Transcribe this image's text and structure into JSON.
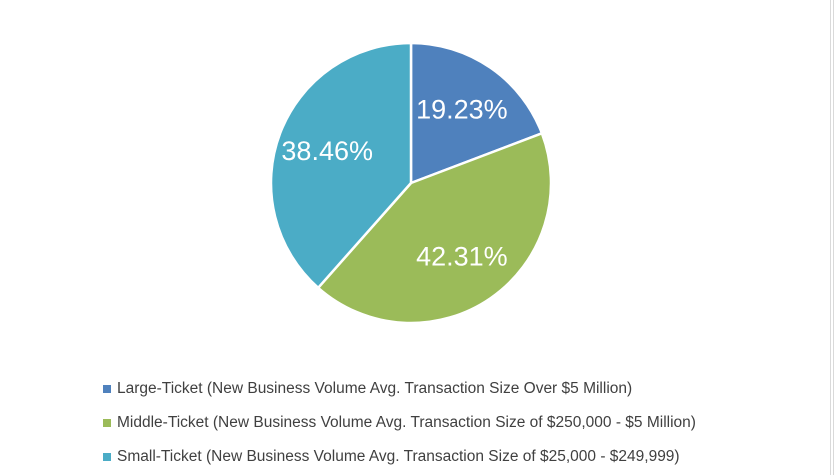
{
  "chart_data": {
    "type": "pie",
    "title": "",
    "slices": [
      {
        "name": "Large-Ticket (New Business Volume Avg. Transaction Size Over $5 Million)",
        "value": 19.23,
        "label": "19.23%",
        "color": "#4f81bd"
      },
      {
        "name": "Middle-Ticket (New Business Volume Avg. Transaction Size of $250,000 - $5 Million)",
        "value": 42.31,
        "label": "42.31%",
        "color": "#9bbb59"
      },
      {
        "name": "Small-Ticket (New Business Volume Avg. Transaction Size of $25,000 - $249,999)",
        "value": 38.46,
        "label": "38.46%",
        "color": "#4bacc6"
      }
    ],
    "start_angle": "12 o'clock",
    "direction": "clockwise",
    "legend_position": "bottom",
    "slice_border_color": "#ffffff"
  }
}
